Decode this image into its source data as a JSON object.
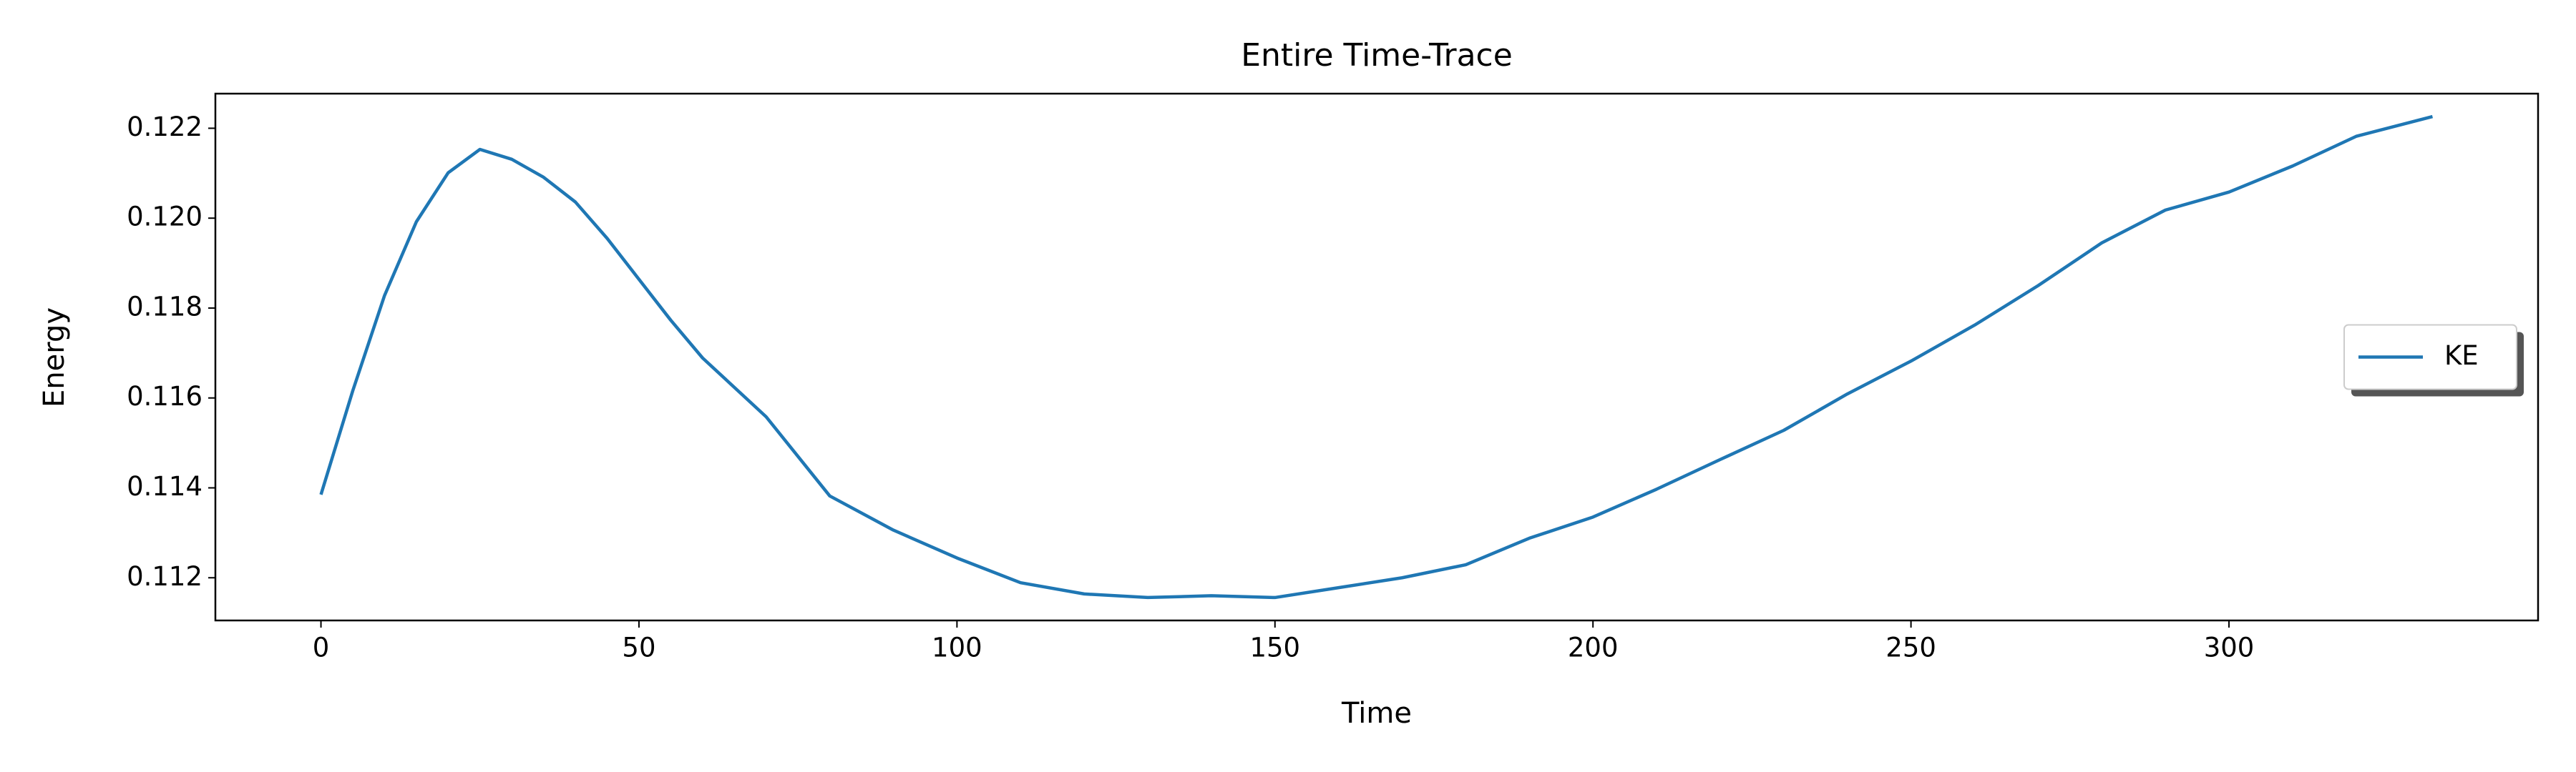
{
  "chart_data": {
    "type": "line",
    "title": "Entire Time-Trace",
    "xlabel": "Time",
    "ylabel": "Energy",
    "x": [
      0,
      5,
      10,
      15,
      20,
      25,
      30,
      35,
      40,
      45,
      50,
      55,
      60,
      70,
      80,
      90,
      100,
      110,
      120,
      130,
      140,
      150,
      160,
      170,
      180,
      190,
      200,
      210,
      220,
      230,
      240,
      250,
      260,
      270,
      280,
      290,
      300,
      310,
      320,
      332
    ],
    "series": [
      {
        "name": "KE",
        "color": "#1f77b4",
        "values": [
          0.11385,
          0.11616,
          0.11828,
          0.11992,
          0.12101,
          0.12153,
          0.12131,
          0.12091,
          0.12036,
          0.11955,
          0.11864,
          0.11773,
          0.11689,
          0.11558,
          0.11382,
          0.11306,
          0.11244,
          0.11189,
          0.11164,
          0.11156,
          0.1116,
          0.11156,
          0.11178,
          0.112,
          0.11229,
          0.11288,
          0.11335,
          0.11397,
          0.11463,
          0.11528,
          0.11609,
          0.11682,
          0.11762,
          0.1185,
          0.11945,
          0.12018,
          0.12058,
          0.12116,
          0.12182,
          0.12226
        ]
      }
    ],
    "xlim": [
      -16.6,
      348.6
    ],
    "xticks": [
      0,
      50,
      100,
      150,
      200,
      250,
      300
    ],
    "ylim": [
      0.11105,
      0.12277
    ],
    "yticks": [
      0.112,
      0.114,
      0.116,
      0.118,
      {
        "value": 0.12,
        "label": "0.120"
      },
      0.122
    ],
    "legend": "center right"
  }
}
